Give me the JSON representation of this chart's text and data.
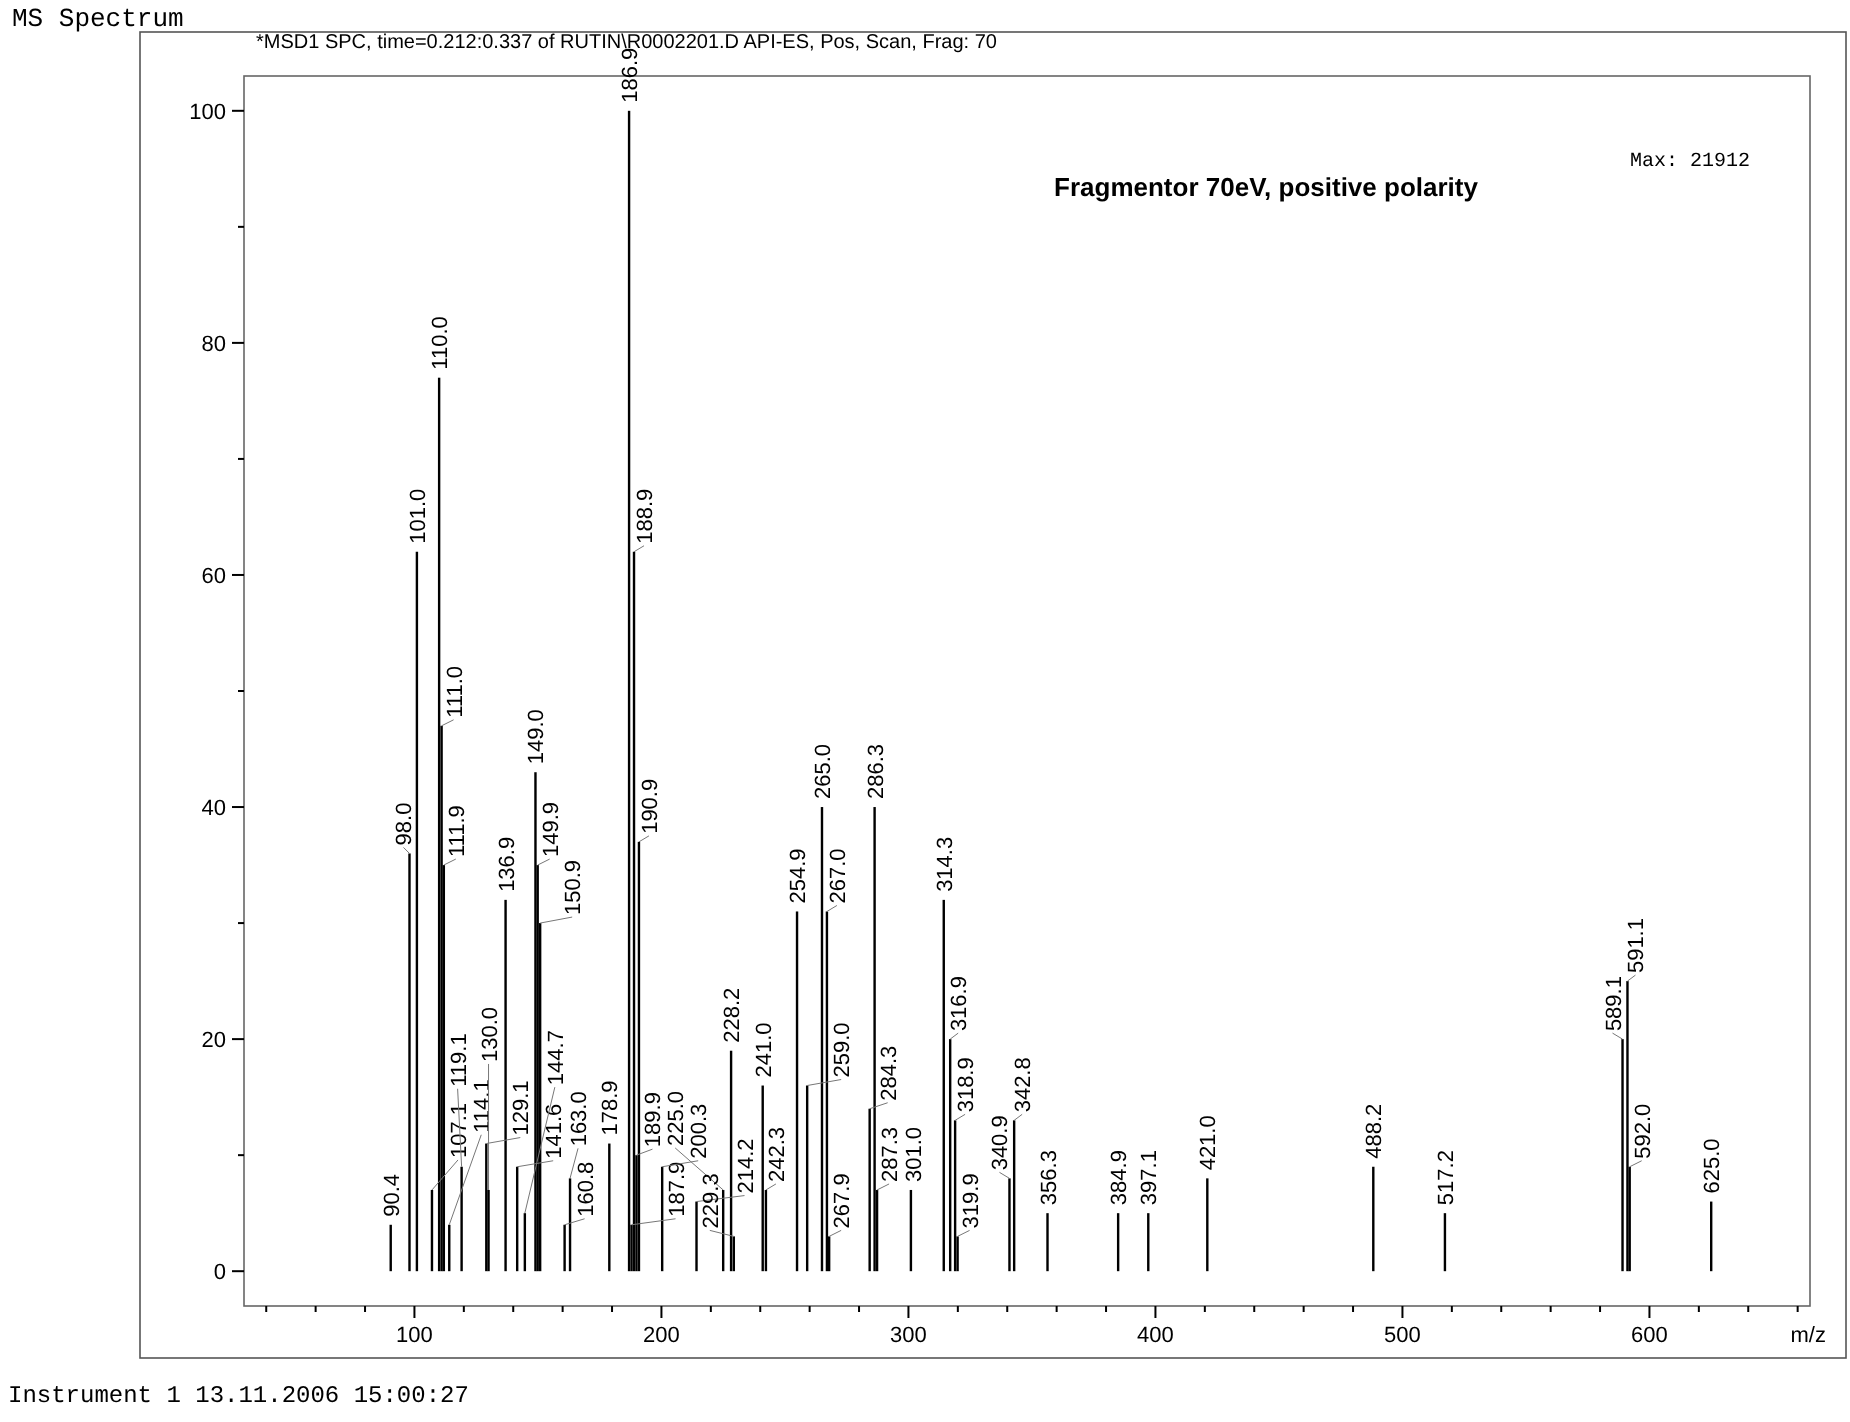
{
  "chart_data": {
    "type": "bar",
    "title": "MS Spectrum",
    "subtitle": "*MSD1 SPC, time=0.212:0.337 of RUTIN\\R0002201.D   API-ES, Pos, Scan, Frag: 70",
    "xlabel": "m/z",
    "annotations": [
      "Fragmentor 70eV, positive polarity",
      "Max: 21912",
      "Instrument 1 13.11.2006 15:00:27",
      {
        "text": "90.4",
        "x": 90.4,
        "y": 4
      },
      {
        "text": "98.0",
        "x": 98.0,
        "y": 36
      },
      {
        "text": "101.0",
        "x": 101.0,
        "y": 62
      },
      {
        "text": "107.1",
        "x": 107.1,
        "y": 7
      },
      {
        "text": "110.0",
        "x": 110.0,
        "y": 77
      },
      {
        "text": "111.0",
        "x": 111.0,
        "y": 47
      },
      {
        "text": "111.9",
        "x": 111.9,
        "y": 35
      },
      {
        "text": "114.1",
        "x": 114.1,
        "y": 4
      },
      {
        "text": "119.1",
        "x": 119.1,
        "y": 9
      },
      {
        "text": "129.1",
        "x": 129.1,
        "y": 11
      },
      {
        "text": "130.0",
        "x": 130.0,
        "y": 7
      },
      {
        "text": "136.9",
        "x": 136.9,
        "y": 32
      },
      {
        "text": "141.6",
        "x": 141.6,
        "y": 9
      },
      {
        "text": "144.7",
        "x": 144.7,
        "y": 5
      },
      {
        "text": "149.0",
        "x": 149.0,
        "y": 43
      },
      {
        "text": "149.9",
        "x": 149.9,
        "y": 35
      },
      {
        "text": "150.9",
        "x": 150.9,
        "y": 30
      },
      {
        "text": "160.8",
        "x": 160.8,
        "y": 4
      },
      {
        "text": "163.0",
        "x": 163.0,
        "y": 8
      },
      {
        "text": "178.9",
        "x": 178.9,
        "y": 11
      },
      {
        "text": "186.9",
        "x": 186.9,
        "y": 100
      },
      {
        "text": "187.9",
        "x": 187.9,
        "y": 4
      },
      {
        "text": "188.9",
        "x": 188.9,
        "y": 62
      },
      {
        "text": "189.9",
        "x": 189.9,
        "y": 10
      },
      {
        "text": "190.9",
        "x": 190.9,
        "y": 37
      },
      {
        "text": "200.3",
        "x": 200.3,
        "y": 9
      },
      {
        "text": "214.2",
        "x": 214.2,
        "y": 6
      },
      {
        "text": "225.0",
        "x": 225.0,
        "y": 7
      },
      {
        "text": "228.2",
        "x": 228.2,
        "y": 19
      },
      {
        "text": "229.3",
        "x": 229.3,
        "y": 3
      },
      {
        "text": "241.0",
        "x": 241.0,
        "y": 16
      },
      {
        "text": "242.3",
        "x": 242.3,
        "y": 7
      },
      {
        "text": "254.9",
        "x": 254.9,
        "y": 31
      },
      {
        "text": "259.0",
        "x": 259.0,
        "y": 16
      },
      {
        "text": "265.0",
        "x": 265.0,
        "y": 40
      },
      {
        "text": "267.0",
        "x": 267.0,
        "y": 31
      },
      {
        "text": "267.9",
        "x": 267.9,
        "y": 3
      },
      {
        "text": "284.3",
        "x": 284.3,
        "y": 14
      },
      {
        "text": "286.3",
        "x": 286.3,
        "y": 40
      },
      {
        "text": "287.3",
        "x": 287.3,
        "y": 7
      },
      {
        "text": "301.0",
        "x": 301.0,
        "y": 7
      },
      {
        "text": "314.3",
        "x": 314.3,
        "y": 32
      },
      {
        "text": "316.9",
        "x": 316.9,
        "y": 20
      },
      {
        "text": "318.9",
        "x": 318.9,
        "y": 13
      },
      {
        "text": "319.9",
        "x": 319.9,
        "y": 3
      },
      {
        "text": "340.9",
        "x": 340.9,
        "y": 8
      },
      {
        "text": "342.8",
        "x": 342.8,
        "y": 13
      },
      {
        "text": "356.3",
        "x": 356.3,
        "y": 5
      },
      {
        "text": "384.9",
        "x": 384.9,
        "y": 5
      },
      {
        "text": "397.1",
        "x": 397.1,
        "y": 5
      },
      {
        "text": "421.0",
        "x": 421.0,
        "y": 8
      },
      {
        "text": "488.2",
        "x": 488.2,
        "y": 9
      },
      {
        "text": "517.2",
        "x": 517.2,
        "y": 5
      },
      {
        "text": "589.1",
        "x": 589.1,
        "y": 20
      },
      {
        "text": "591.1",
        "x": 591.1,
        "y": 25
      },
      {
        "text": "592.0",
        "x": 592.0,
        "y": 9
      },
      {
        "text": "625.0",
        "x": 625.0,
        "y": 6
      }
    ],
    "x": [
      90.4,
      98.0,
      101.0,
      107.1,
      110.0,
      111.0,
      111.9,
      114.1,
      119.1,
      129.1,
      130.0,
      136.9,
      141.6,
      144.7,
      149.0,
      149.9,
      150.9,
      160.8,
      163.0,
      178.9,
      186.9,
      187.9,
      188.9,
      189.9,
      190.9,
      200.3,
      214.2,
      225.0,
      228.2,
      229.3,
      241.0,
      242.3,
      254.9,
      259.0,
      265.0,
      267.0,
      267.9,
      284.3,
      286.3,
      287.3,
      301.0,
      314.3,
      316.9,
      318.9,
      319.9,
      340.9,
      342.8,
      356.3,
      384.9,
      397.1,
      421.0,
      488.2,
      517.2,
      589.1,
      591.1,
      592.0,
      625.0
    ],
    "values": [
      4,
      36,
      62,
      7,
      77,
      47,
      35,
      4,
      9,
      11,
      7,
      32,
      9,
      5,
      43,
      35,
      30,
      4,
      8,
      11,
      100,
      4,
      62,
      10,
      37,
      9,
      6,
      7,
      19,
      3,
      16,
      7,
      31,
      16,
      40,
      31,
      3,
      14,
      40,
      7,
      7,
      32,
      20,
      13,
      3,
      8,
      13,
      5,
      5,
      5,
      8,
      9,
      5,
      20,
      25,
      9,
      6
    ],
    "color": "#000000",
    "xlim": [
      31,
      665
    ],
    "ylim": [
      -3,
      103
    ],
    "xticks": [
      {
        "value": 40,
        "label": null
      },
      {
        "value": 60,
        "label": null
      },
      {
        "value": 80,
        "label": null
      },
      100,
      {
        "value": 120,
        "label": null
      },
      {
        "value": 140,
        "label": null
      },
      {
        "value": 160,
        "label": null
      },
      {
        "value": 180,
        "label": null
      },
      200,
      {
        "value": 220,
        "label": null
      },
      {
        "value": 240,
        "label": null
      },
      {
        "value": 260,
        "label": null
      },
      {
        "value": 280,
        "label": null
      },
      300,
      {
        "value": 320,
        "label": null
      },
      {
        "value": 340,
        "label": null
      },
      {
        "value": 360,
        "label": null
      },
      {
        "value": 380,
        "label": null
      },
      400,
      {
        "value": 420,
        "label": null
      },
      {
        "value": 440,
        "label": null
      },
      {
        "value": 460,
        "label": null
      },
      {
        "value": 480,
        "label": null
      },
      500,
      {
        "value": 520,
        "label": null
      },
      {
        "value": 540,
        "label": null
      },
      {
        "value": 560,
        "label": null
      },
      {
        "value": 580,
        "label": null
      },
      600,
      {
        "value": 620,
        "label": null
      },
      {
        "value": 640,
        "label": null
      },
      {
        "value": 660,
        "label": null
      }
    ],
    "yticks": [
      0,
      {
        "value": 10,
        "label": null
      },
      20,
      {
        "value": 30,
        "label": null
      },
      40,
      {
        "value": 50,
        "label": null
      },
      60,
      {
        "value": 70,
        "label": null
      },
      80,
      {
        "value": 90,
        "label": null
      },
      100
    ]
  }
}
